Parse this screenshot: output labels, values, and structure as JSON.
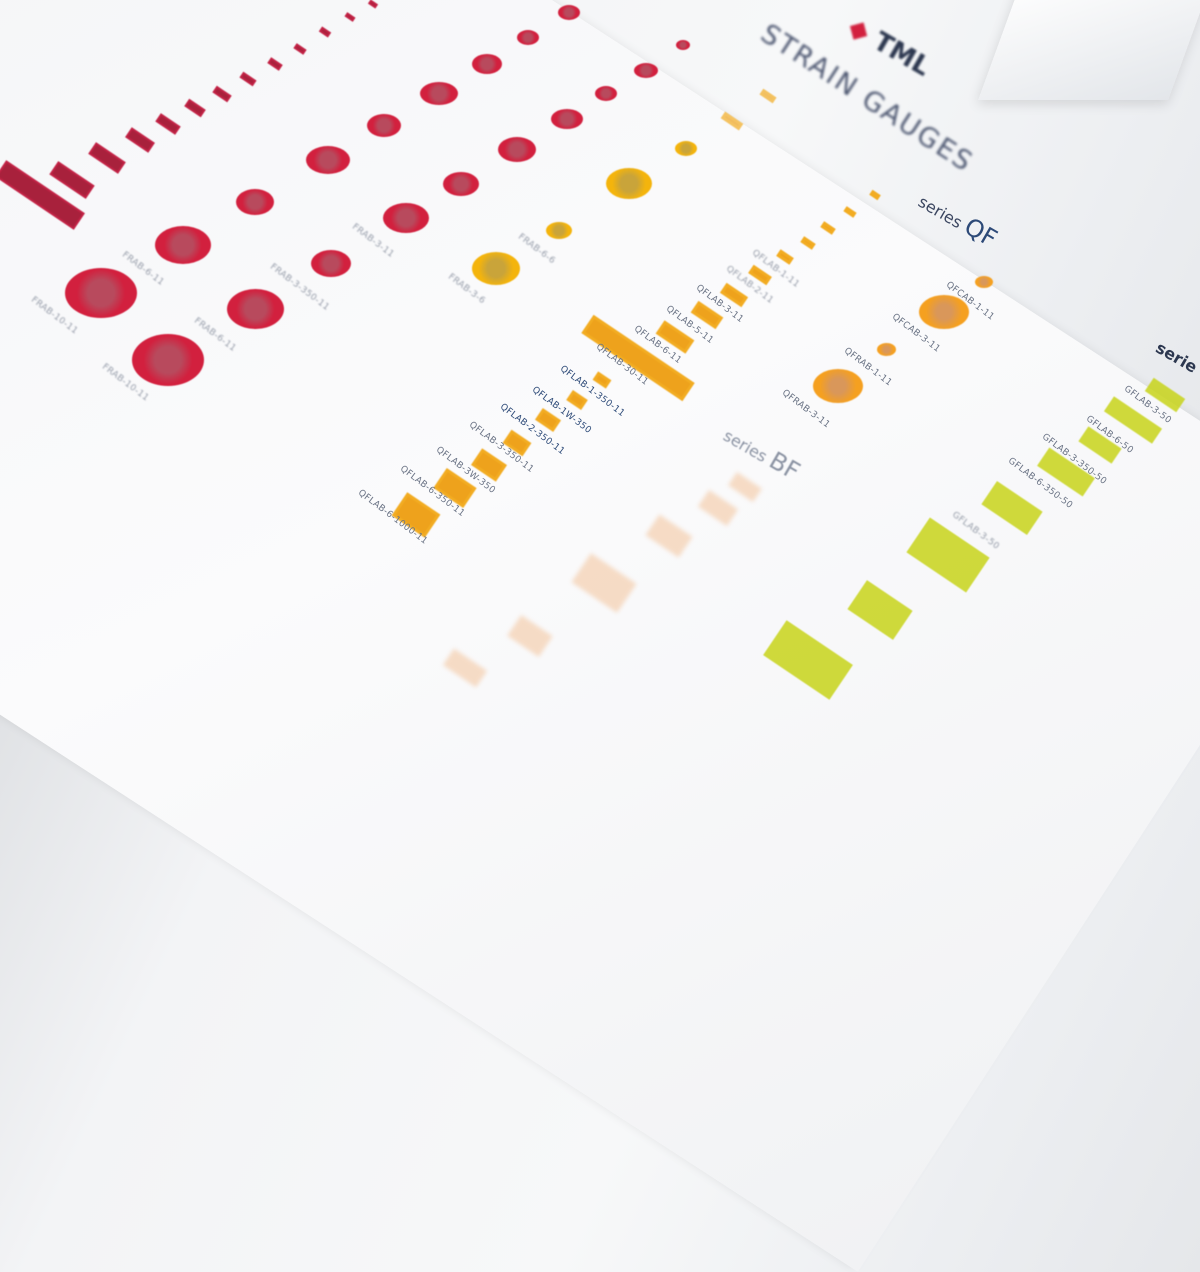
{
  "board": {
    "brand": "TML",
    "title": "STRAIN GAUGES",
    "series_qf_prefix": "series",
    "series_qf": "QF",
    "series_bf_prefix": "series",
    "series_bf": "BF",
    "series_g_prefix": "serie",
    "colors": {
      "red": "#d2203e",
      "yellow": "#f4b40c",
      "orange": "#eea21c",
      "green": "#c8d41a",
      "bf": "#f3c39a",
      "text": "#2d4a78"
    },
    "qflab_labels": [
      "QFLAB-6-1000-11",
      "QFLAB-6-350-11",
      "QFLAB-3W-350",
      "QFLAB-3-350-11",
      "QFLAB-2-350-11",
      "QFLAB-1W-350",
      "QFLAB-1-350-11",
      "QFLAB-30-11",
      "QFLAB-6-11",
      "QFLAB-5-11",
      "QFLAB-3-11",
      "QFLAB-2-11",
      "QFLAB-1-11"
    ],
    "qf_round_labels": [
      "QFCAB-1-11",
      "QFCAB-3-11",
      "QFRAB-1-11",
      "QFRAB-3-11"
    ],
    "g_labels": [
      "GFLAB-3-50",
      "GFLAB-6-50",
      "GFLAB-3-350-50",
      "GFLAB-6-350-50",
      "GFLAB-3-50"
    ],
    "red_labels": [
      "FRAB-10-11",
      "FRAB-6-11",
      "FRAB-10-11",
      "FRAB-6-11",
      "FRAB-3-350-11",
      "FRAB-3-11"
    ],
    "yellow_labels": [
      "FRAB-3-6",
      "FRAB-6-6"
    ]
  }
}
